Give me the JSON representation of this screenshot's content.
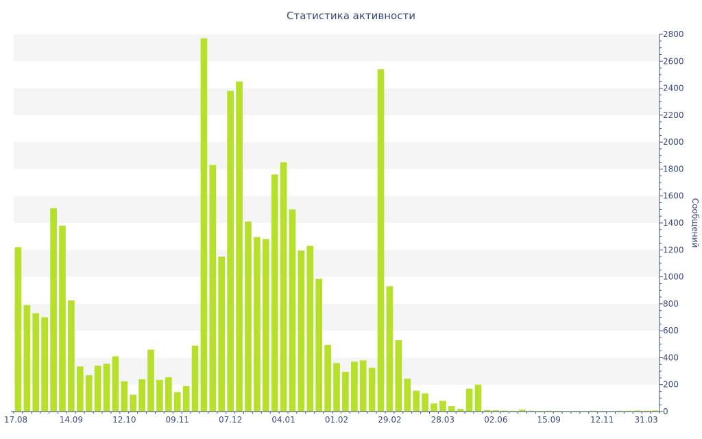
{
  "chart_data": {
    "type": "bar",
    "title": "Статистика активности",
    "ylabel": "Сообщений",
    "xlabel": "",
    "ylim": [
      0,
      2800
    ],
    "y_ticks": [
      0,
      200,
      400,
      600,
      800,
      1000,
      1200,
      1400,
      1600,
      1800,
      2000,
      2200,
      2400,
      2600,
      2800
    ],
    "y_axis_position": "right",
    "grid": "alternating horizontal bands",
    "x_tick_labels": [
      {
        "index": 0,
        "label": "17.08"
      },
      {
        "index": 6.5,
        "label": "14.09"
      },
      {
        "index": 12.5,
        "label": "12.10"
      },
      {
        "index": 18.5,
        "label": "09.11"
      },
      {
        "index": 24.5,
        "label": "07.12"
      },
      {
        "index": 30.5,
        "label": "04.01"
      },
      {
        "index": 36.5,
        "label": "01.02"
      },
      {
        "index": 42.5,
        "label": "29.02"
      },
      {
        "index": 48.5,
        "label": "28.03"
      },
      {
        "index": 54.5,
        "label": "02.06"
      },
      {
        "index": 60.5,
        "label": "15.09"
      },
      {
        "index": 66.5,
        "label": "12.11"
      },
      {
        "index": 71.5,
        "label": "31.03"
      }
    ],
    "series": [
      {
        "color": "#b7e02c",
        "values": [
          1220,
          790,
          730,
          700,
          1510,
          1380,
          825,
          335,
          270,
          340,
          355,
          410,
          225,
          125,
          240,
          460,
          235,
          255,
          145,
          190,
          490,
          2770,
          1830,
          1150,
          2380,
          2450,
          1410,
          1295,
          1280,
          1760,
          1850,
          1500,
          1195,
          1230,
          985,
          495,
          360,
          295,
          370,
          380,
          325,
          2540,
          930,
          530,
          245,
          155,
          135,
          60,
          80,
          40,
          20,
          170,
          200,
          12,
          10,
          8,
          6,
          14,
          6,
          5,
          6,
          5,
          4,
          5,
          4,
          6,
          5,
          4,
          6,
          6,
          8,
          6,
          8
        ]
      }
    ]
  }
}
